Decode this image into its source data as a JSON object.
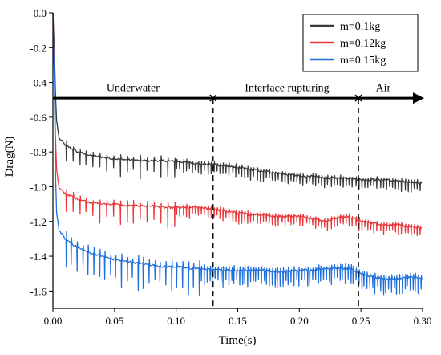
{
  "chart_data": {
    "type": "line",
    "xlabel": "Time(s)",
    "ylabel": "Drag(N)",
    "xlim": [
      0.0,
      0.3
    ],
    "ylim": [
      -1.7,
      0.0
    ],
    "x_ticks": [
      0.0,
      0.05,
      0.1,
      0.15,
      0.2,
      0.25,
      0.3
    ],
    "x_tick_labels": [
      "0.00",
      "0.05",
      "0.10",
      "0.15",
      "0.20",
      "0.25",
      "0.30"
    ],
    "y_ticks": [
      0.0,
      -0.2,
      -0.4,
      -0.6,
      -0.8,
      -1.0,
      -1.2,
      -1.4,
      -1.6
    ],
    "y_tick_labels": [
      "0.0",
      "-0.2",
      "-0.4",
      "-0.6",
      "-0.8",
      "-1.0",
      "-1.2",
      "-1.4",
      "-1.6"
    ],
    "grid": false,
    "legend_position": "top-right",
    "series": [
      {
        "name": "m=0.1kg",
        "color": "#3a3a3a",
        "points": [
          [
            0.0,
            0.0
          ],
          [
            0.0012,
            -0.2
          ],
          [
            0.002,
            -0.45
          ],
          [
            0.003,
            -0.62
          ],
          [
            0.005,
            -0.72
          ],
          [
            0.01,
            -0.76
          ],
          [
            0.02,
            -0.8
          ],
          [
            0.03,
            -0.82
          ],
          [
            0.04,
            -0.83
          ],
          [
            0.05,
            -0.84
          ],
          [
            0.06,
            -0.845
          ],
          [
            0.07,
            -0.85
          ],
          [
            0.08,
            -0.85
          ],
          [
            0.09,
            -0.85
          ],
          [
            0.1,
            -0.855
          ],
          [
            0.11,
            -0.86
          ],
          [
            0.12,
            -0.87
          ],
          [
            0.13,
            -0.87
          ],
          [
            0.14,
            -0.88
          ],
          [
            0.15,
            -0.89
          ],
          [
            0.16,
            -0.9
          ],
          [
            0.17,
            -0.91
          ],
          [
            0.18,
            -0.92
          ],
          [
            0.19,
            -0.93
          ],
          [
            0.2,
            -0.94
          ],
          [
            0.21,
            -0.94
          ],
          [
            0.22,
            -0.95
          ],
          [
            0.23,
            -0.95
          ],
          [
            0.24,
            -0.95
          ],
          [
            0.25,
            -0.96
          ],
          [
            0.26,
            -0.96
          ],
          [
            0.27,
            -0.96
          ],
          [
            0.28,
            -0.97
          ],
          [
            0.29,
            -0.97
          ],
          [
            0.3,
            -0.98
          ]
        ],
        "spikes": [
          {
            "every": 0.0055,
            "depth": 0.09,
            "from": 0.01,
            "to": 0.1
          },
          {
            "every": 0.0025,
            "depth": 0.05,
            "from": 0.1,
            "to": 0.3
          }
        ]
      },
      {
        "name": "m=0.12kg",
        "color": "#e8393d",
        "points": [
          [
            0.0,
            0.0
          ],
          [
            0.0012,
            -0.3
          ],
          [
            0.002,
            -0.7
          ],
          [
            0.003,
            -0.9
          ],
          [
            0.005,
            -1.01
          ],
          [
            0.01,
            -1.04
          ],
          [
            0.02,
            -1.07
          ],
          [
            0.03,
            -1.09
          ],
          [
            0.04,
            -1.1
          ],
          [
            0.05,
            -1.1
          ],
          [
            0.06,
            -1.11
          ],
          [
            0.07,
            -1.11
          ],
          [
            0.08,
            -1.11
          ],
          [
            0.09,
            -1.12
          ],
          [
            0.1,
            -1.12
          ],
          [
            0.11,
            -1.12
          ],
          [
            0.12,
            -1.12
          ],
          [
            0.13,
            -1.13
          ],
          [
            0.14,
            -1.14
          ],
          [
            0.15,
            -1.15
          ],
          [
            0.16,
            -1.16
          ],
          [
            0.17,
            -1.16
          ],
          [
            0.18,
            -1.17
          ],
          [
            0.19,
            -1.17
          ],
          [
            0.2,
            -1.17
          ],
          [
            0.21,
            -1.18
          ],
          [
            0.22,
            -1.2
          ],
          [
            0.23,
            -1.18
          ],
          [
            0.24,
            -1.17
          ],
          [
            0.25,
            -1.2
          ],
          [
            0.26,
            -1.21
          ],
          [
            0.27,
            -1.22
          ],
          [
            0.28,
            -1.22
          ],
          [
            0.29,
            -1.23
          ],
          [
            0.3,
            -1.24
          ]
        ],
        "spikes": [
          {
            "every": 0.0055,
            "depth": 0.1,
            "from": 0.01,
            "to": 0.1
          },
          {
            "every": 0.0025,
            "depth": 0.05,
            "from": 0.1,
            "to": 0.3
          }
        ]
      },
      {
        "name": "m=0.15kg",
        "color": "#1e6fdc",
        "points": [
          [
            0.0,
            0.0
          ],
          [
            0.0012,
            -0.4
          ],
          [
            0.002,
            -0.9
          ],
          [
            0.003,
            -1.15
          ],
          [
            0.005,
            -1.25
          ],
          [
            0.01,
            -1.3
          ],
          [
            0.02,
            -1.35
          ],
          [
            0.03,
            -1.38
          ],
          [
            0.04,
            -1.4
          ],
          [
            0.05,
            -1.42
          ],
          [
            0.06,
            -1.43
          ],
          [
            0.07,
            -1.44
          ],
          [
            0.08,
            -1.45
          ],
          [
            0.09,
            -1.46
          ],
          [
            0.1,
            -1.46
          ],
          [
            0.11,
            -1.47
          ],
          [
            0.12,
            -1.47
          ],
          [
            0.13,
            -1.48
          ],
          [
            0.14,
            -1.48
          ],
          [
            0.15,
            -1.48
          ],
          [
            0.16,
            -1.48
          ],
          [
            0.17,
            -1.48
          ],
          [
            0.18,
            -1.49
          ],
          [
            0.19,
            -1.49
          ],
          [
            0.2,
            -1.48
          ],
          [
            0.21,
            -1.48
          ],
          [
            0.22,
            -1.47
          ],
          [
            0.23,
            -1.47
          ],
          [
            0.24,
            -1.47
          ],
          [
            0.25,
            -1.5
          ],
          [
            0.26,
            -1.52
          ],
          [
            0.27,
            -1.53
          ],
          [
            0.28,
            -1.53
          ],
          [
            0.29,
            -1.52
          ],
          [
            0.3,
            -1.53
          ]
        ],
        "spikes": [
          {
            "every": 0.0045,
            "depth": 0.14,
            "from": 0.01,
            "to": 0.12
          },
          {
            "every": 0.0022,
            "depth": 0.08,
            "from": 0.12,
            "to": 0.3
          }
        ]
      }
    ],
    "phase_arrow": {
      "y": -0.49,
      "markers": [
        0.13,
        0.248
      ],
      "end_arrow": true
    },
    "phase_boundaries": [
      0.13,
      0.248
    ],
    "phase_labels": [
      {
        "text": "Underwater",
        "x": 0.065,
        "y": -0.45
      },
      {
        "text": "Interface rupturing",
        "x": 0.19,
        "y": -0.45
      },
      {
        "text": "Air",
        "x": 0.268,
        "y": -0.45
      }
    ]
  }
}
